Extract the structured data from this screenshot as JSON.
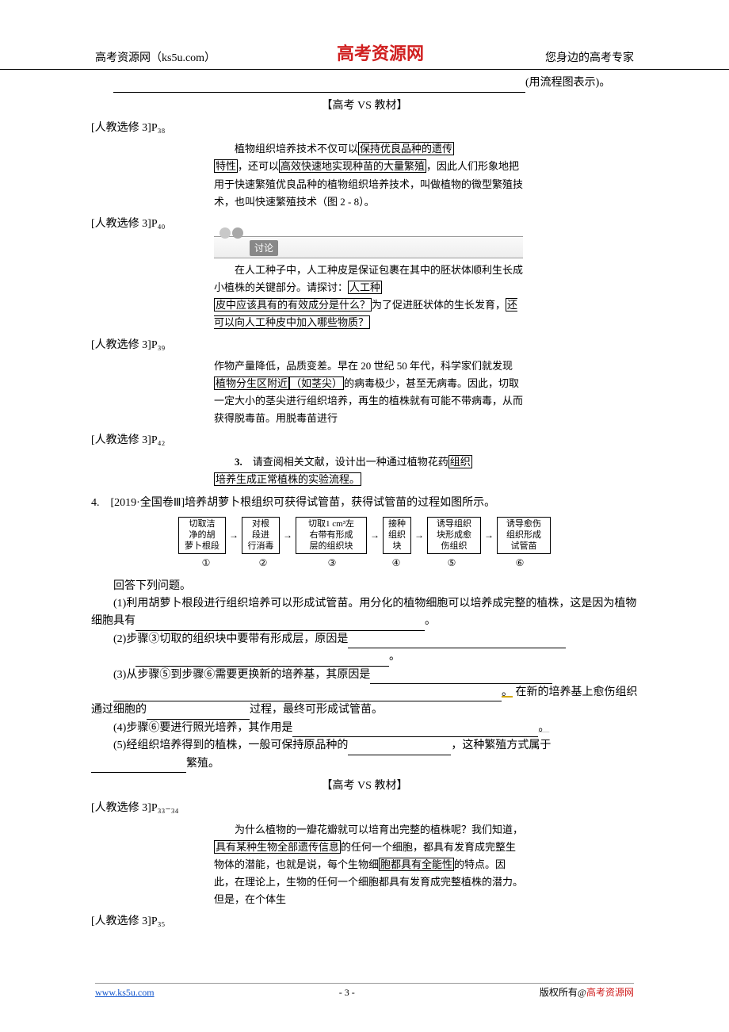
{
  "header": {
    "left": "高考资源网（ks5u.com）",
    "center": "高考资源网",
    "right": "您身边的高考专家"
  },
  "top_blank_tail": "(用流程图表示)。",
  "section1_title": "【高考 VS 教材】",
  "refs": {
    "p38": "[人教选修 3]P₃₈",
    "p40": "[人教选修 3]P₄₀",
    "p39": "[人教选修 3]P₃₉",
    "p42": "[人教选修 3]P₄₂",
    "p33_34": "[人教选修 3]P₃₃₋₃₄",
    "p35": "[人教选修 3]P₃₅"
  },
  "excerpt_p38": {
    "lead": "植物组织培养技术不仅可以",
    "box1": "保持优良品种的遗传",
    "box1b": "特性",
    "mid1": "，还可以",
    "box2": "高效快速地实现种苗的大量繁殖",
    "tail": "，因此人们形象地把用于快速繁殖优良品种的植物组织培养技术，叫做植物的微型繁殖技术，也叫快速繁殖技术（图 2 - 8）。"
  },
  "discuss_label": "讨论",
  "excerpt_p40": {
    "l1": "在人工种子中，人工种皮是保证包裹在其中的胚状体顺利生长成小植株的关键部分。请探讨：",
    "box1": "人工种",
    "box1b": "皮中应该具有的有效成分是什么？",
    "mid": "为了促进胚状体的生长发育，",
    "box2": "还可以向人工种皮中加入哪些物质？"
  },
  "excerpt_p39": {
    "l1": "作物产量降低，品质变差。早在 20 世纪 50 年代，科学家们就发现",
    "box1": "植物分生区附近",
    "paren": "（如茎尖）",
    "l2": "的病毒极少，甚至无病毒。因此，切取一定大小的茎尖进行组织培养，再生的植株就有可能不带病毒，从而获得脱毒苗。用脱毒苗进行"
  },
  "excerpt_p42": {
    "num": "3.",
    "lead": "　请查阅相关文献，设计出一种通过植物花药",
    "box1": "组织",
    "box1b": "培养生成正常植株的实验流程。"
  },
  "q4": {
    "head": "4.　[2019·全国卷Ⅲ]培养胡萝卜根组织可获得试管苗，获得试管苗的过程如图所示。",
    "flow": {
      "b1": "切取洁\n净的胡\n萝卜根段",
      "b2": "对根\n段进\n行消毒",
      "b3": "切取1 cm³左\n右带有形成\n层的组织块",
      "b4": "接种\n组织\n块",
      "b5": "诱导组织\n块形成愈\n伤组织",
      "b6": "诱导愈伤\n组织形成\n试管苗",
      "n1": "①",
      "n2": "②",
      "n3": "③",
      "n4": "④",
      "n5": "⑤",
      "n6": "⑥",
      "w1": 60,
      "w2": 48,
      "w3": 90,
      "w4": 36,
      "w5": 68,
      "w6": 68
    },
    "answer_head": "回答下列问题。",
    "p1a": "(1)利用胡萝卜根段进行组织培养可以形成试管苗。用分化的植物细胞可以培养成完整的植株，这是因为植物细胞具有",
    "p1b": "。",
    "p2a": "(2)步骤③切取的组织块中要带有形成层，原因是",
    "p2b": "。",
    "p3a": "(3)从步骤⑤到步骤⑥需要更换新的培养基，其原因是",
    "p3b": "。",
    "p3c": "在新的培养基上愈伤组织通过细胞的",
    "p3d": "过程，最终可形成试管苗。",
    "p4a": "(4)步骤⑥要进行照光培养，其作用是",
    "p4b": "。",
    "p5a": "(5)经组织培养得到的植株，一般可保持原品种的",
    "p5b": "，这种繁殖方式属于",
    "p5c": "繁殖。"
  },
  "section2_title": "【高考 VS 教材】",
  "excerpt_p33": {
    "l1": "为什么植物的一瓣花瓣就可以培育出完整的植株呢？我们知道，",
    "box1": "具有某种生物全部遗传信息",
    "l2": "的任何一个细胞，都具有发育成完整生物体的潜能，也就是说，每个生物细",
    "box2": "胞都具有全能性",
    "l3": "的特点。因此，在理论上，生物的任何一个细胞都具有发育成完整植株的潜力。但是，在个体生"
  },
  "footer": {
    "left": "www.ks5u.com",
    "center": "- 3 -",
    "right_plain": "版权所有@",
    "right_red": "高考资源网"
  }
}
